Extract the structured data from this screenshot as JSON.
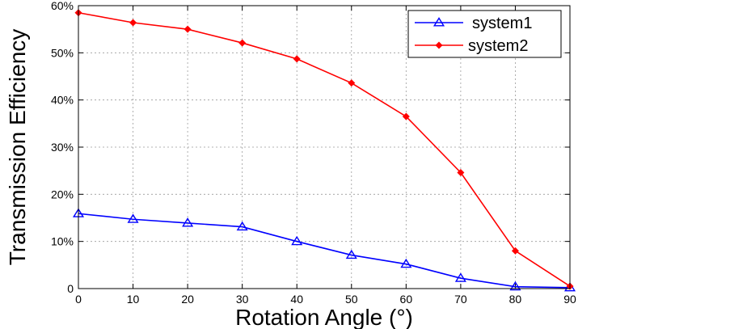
{
  "chart_data": {
    "type": "line",
    "title": "",
    "xlabel": "Rotation Angle (°)",
    "ylabel": "Transmission Efficiency",
    "x": [
      0,
      10,
      20,
      30,
      40,
      50,
      60,
      70,
      80,
      90
    ],
    "xticks": [
      "0",
      "10",
      "20",
      "30",
      "40",
      "50",
      "60",
      "70",
      "80",
      "90"
    ],
    "xlim": [
      0,
      90
    ],
    "ylim": [
      0,
      60
    ],
    "yticks": [
      0,
      10,
      20,
      30,
      40,
      50,
      60
    ],
    "ytick_labels": [
      "0",
      "10%",
      "20%",
      "30%",
      "40%",
      "50%",
      "60%"
    ],
    "grid": true,
    "legend_position": "top-right",
    "series": [
      {
        "name": "system1",
        "color": "#0000ff",
        "marker": "triangle",
        "values": [
          15.9,
          14.7,
          13.9,
          13.1,
          10.0,
          7.1,
          5.2,
          2.2,
          0.4,
          0.2
        ]
      },
      {
        "name": "system2",
        "color": "#ff0000",
        "marker": "diamond",
        "values": [
          58.5,
          56.4,
          55.0,
          52.1,
          48.7,
          43.6,
          36.5,
          24.6,
          8.0,
          0.5
        ]
      }
    ]
  }
}
